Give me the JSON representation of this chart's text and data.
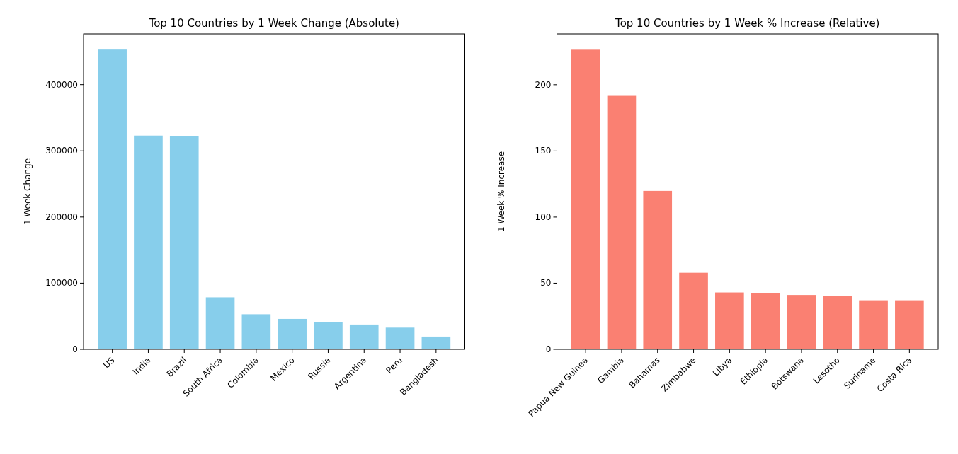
{
  "chart_data": [
    {
      "type": "bar",
      "title": "Top 10 Countries by 1 Week Change (Absolute)",
      "ylabel": "1 Week Change",
      "categories": [
        "US",
        "India",
        "Brazil",
        "South Africa",
        "Colombia",
        "Mexico",
        "Russia",
        "Argentina",
        "Peru",
        "Bangladesh"
      ],
      "values": [
        454000,
        323000,
        322000,
        78600,
        53000,
        46000,
        40600,
        37500,
        32800,
        19300
      ],
      "color": "#87ceeb",
      "ylim": [
        0,
        476600
      ],
      "yticks": [
        0,
        100000,
        200000,
        300000,
        400000
      ],
      "grid": false
    },
    {
      "type": "bar",
      "title": "Top 10 Countries by 1 Week % Increase (Relative)",
      "ylabel": "1 Week % Increase",
      "categories": [
        "Papua New Guinea",
        "Gambia",
        "Bahamas",
        "Zimbabwe",
        "Libya",
        "Ethiopia",
        "Botswana",
        "Lesotho",
        "Suriname",
        "Costa Rica"
      ],
      "values": [
        227,
        191.6,
        119.8,
        57.9,
        43,
        42.6,
        41.1,
        40.6,
        37.1,
        37.1
      ],
      "color": "#fa8072",
      "ylim": [
        0,
        238.4
      ],
      "yticks": [
        0,
        50,
        100,
        150,
        200
      ],
      "grid": false
    }
  ]
}
